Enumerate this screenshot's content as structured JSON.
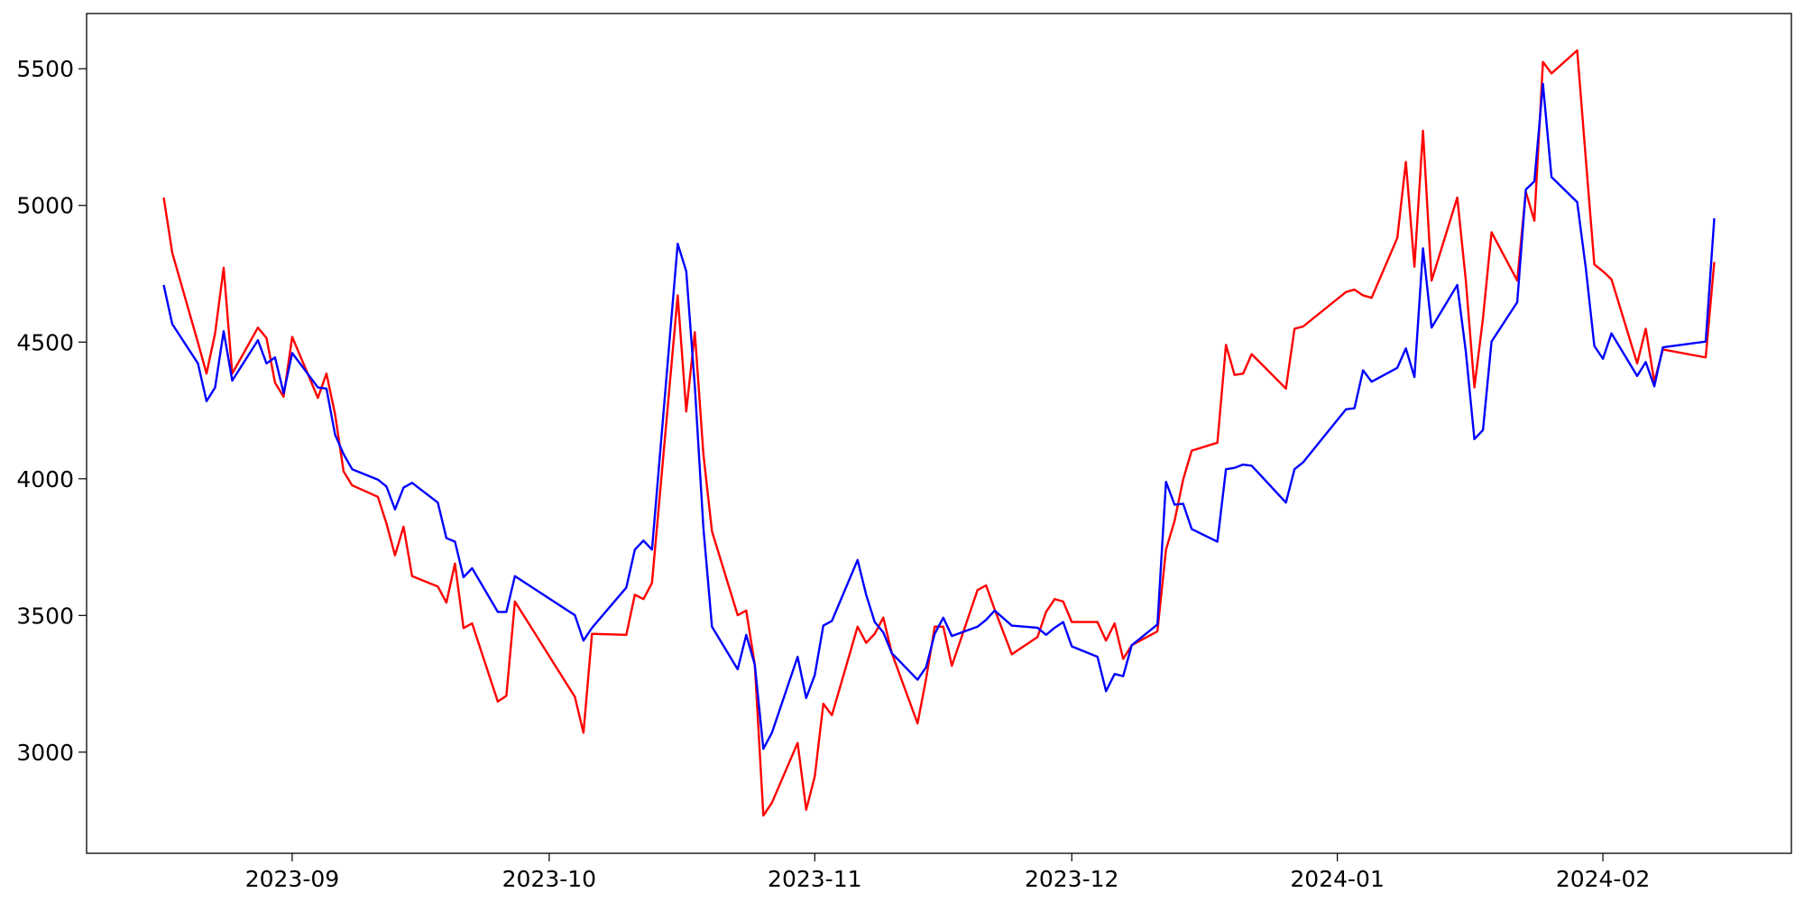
{
  "chart_data": {
    "type": "line",
    "x": [
      "2023-08-17",
      "2023-08-18",
      "2023-08-21",
      "2023-08-22",
      "2023-08-23",
      "2023-08-24",
      "2023-08-25",
      "2023-08-28",
      "2023-08-29",
      "2023-08-30",
      "2023-08-31",
      "2023-09-01",
      "2023-09-04",
      "2023-09-05",
      "2023-09-06",
      "2023-09-07",
      "2023-09-08",
      "2023-09-11",
      "2023-09-12",
      "2023-09-13",
      "2023-09-14",
      "2023-09-15",
      "2023-09-18",
      "2023-09-19",
      "2023-09-20",
      "2023-09-21",
      "2023-09-22",
      "2023-09-25",
      "2023-09-26",
      "2023-09-27",
      "2023-10-04",
      "2023-10-05",
      "2023-10-06",
      "2023-10-10",
      "2023-10-11",
      "2023-10-12",
      "2023-10-13",
      "2023-10-16",
      "2023-10-17",
      "2023-10-18",
      "2023-10-19",
      "2023-10-20",
      "2023-10-23",
      "2023-10-24",
      "2023-10-25",
      "2023-10-26",
      "2023-10-27",
      "2023-10-30",
      "2023-10-31",
      "2023-11-01",
      "2023-11-02",
      "2023-11-03",
      "2023-11-06",
      "2023-11-07",
      "2023-11-08",
      "2023-11-09",
      "2023-11-10",
      "2023-11-13",
      "2023-11-14",
      "2023-11-15",
      "2023-11-16",
      "2023-11-17",
      "2023-11-20",
      "2023-11-21",
      "2023-11-22",
      "2023-11-24",
      "2023-11-27",
      "2023-11-28",
      "2023-11-29",
      "2023-11-30",
      "2023-12-01",
      "2023-12-04",
      "2023-12-05",
      "2023-12-06",
      "2023-12-07",
      "2023-12-08",
      "2023-12-11",
      "2023-12-12",
      "2023-12-13",
      "2023-12-14",
      "2023-12-15",
      "2023-12-18",
      "2023-12-19",
      "2023-12-20",
      "2023-12-21",
      "2023-12-22",
      "2023-12-26",
      "2023-12-27",
      "2023-12-28",
      "2024-01-02",
      "2024-01-03",
      "2024-01-04",
      "2024-01-05",
      "2024-01-08",
      "2024-01-09",
      "2024-01-10",
      "2024-01-11",
      "2024-01-12",
      "2024-01-15",
      "2024-01-16",
      "2024-01-17",
      "2024-01-18",
      "2024-01-19",
      "2024-01-22",
      "2024-01-23",
      "2024-01-24",
      "2024-01-25",
      "2024-01-26",
      "2024-01-29",
      "2024-01-30",
      "2024-01-31",
      "2024-02-01",
      "2024-02-02",
      "2024-02-05",
      "2024-02-06",
      "2024-02-07",
      "2024-02-08",
      "2024-02-13",
      "2024-02-14"
    ],
    "series": [
      {
        "color": "#ff0000",
        "values": [
          5029,
          4827,
          4498,
          4385,
          4532,
          4772,
          4385,
          4553,
          4515,
          4351,
          4300,
          4519,
          4296,
          4385,
          4237,
          4027,
          3976,
          3934,
          3837,
          3720,
          3825,
          3644,
          3606,
          3547,
          3690,
          3454,
          3471,
          3185,
          3206,
          3551,
          3202,
          3071,
          3433,
          3429,
          3576,
          3560,
          3619,
          4671,
          4246,
          4536,
          4090,
          3808,
          3501,
          3518,
          3320,
          2768,
          2815,
          3034,
          2789,
          2911,
          3177,
          3135,
          3459,
          3400,
          3433,
          3492,
          3362,
          3105,
          3269,
          3459,
          3459,
          3316,
          3593,
          3610,
          3522,
          3358,
          3421,
          3513,
          3560,
          3551,
          3476,
          3476,
          3408,
          3471,
          3341,
          3391,
          3442,
          3741,
          3846,
          3997,
          4103,
          4132,
          4490,
          4380,
          4385,
          4456,
          4330,
          4549,
          4557,
          4683,
          4692,
          4671,
          4662,
          4881,
          5159,
          4776,
          5273,
          4725,
          5029,
          4725,
          4334,
          4587,
          4902,
          4725,
          5050,
          4944,
          5525,
          5483,
          5567,
          5172,
          4784,
          4759,
          4730,
          4422,
          4549,
          4355,
          4473,
          4444,
          4793
        ]
      },
      {
        "color": "#0000ff",
        "values": [
          4709,
          4566,
          4422,
          4284,
          4334,
          4540,
          4359,
          4507,
          4422,
          4444,
          4313,
          4460,
          4334,
          4330,
          4162,
          4090,
          4035,
          3997,
          3972,
          3888,
          3968,
          3985,
          3913,
          3783,
          3770,
          3640,
          3673,
          3513,
          3513,
          3644,
          3501,
          3408,
          3455,
          3602,
          3741,
          3774,
          3741,
          4860,
          4759,
          4338,
          3821,
          3459,
          3303,
          3429,
          3320,
          3012,
          3071,
          3349,
          3198,
          3282,
          3463,
          3480,
          3703,
          3576,
          3476,
          3438,
          3362,
          3265,
          3311,
          3433,
          3492,
          3425,
          3459,
          3484,
          3518,
          3463,
          3455,
          3429,
          3455,
          3476,
          3387,
          3349,
          3223,
          3286,
          3278,
          3391,
          3467,
          3989,
          3905,
          3909,
          3816,
          3770,
          4035,
          4040,
          4052,
          4048,
          3913,
          4035,
          4060,
          4254,
          4258,
          4397,
          4355,
          4406,
          4477,
          4372,
          4843,
          4553,
          4709,
          4465,
          4145,
          4178,
          4502,
          4646,
          5058,
          5088,
          5445,
          5104,
          5012,
          4772,
          4486,
          4439,
          4532,
          4376,
          4427,
          4338,
          4481,
          4502,
          4953
        ]
      }
    ],
    "xlim": [
      "2023-08-08",
      "2024-02-23"
    ],
    "xticks": [
      {
        "value": "2023-09-01",
        "label": "2023-09"
      },
      {
        "value": "2023-10-01",
        "label": "2023-10"
      },
      {
        "value": "2023-11-01",
        "label": "2023-11"
      },
      {
        "value": "2023-12-01",
        "label": "2023-12"
      },
      {
        "value": "2024-01-01",
        "label": "2024-01"
      },
      {
        "value": "2024-02-01",
        "label": "2024-02"
      }
    ],
    "ylim": [
      2630,
      5702
    ],
    "yticks": [
      3000,
      3500,
      4000,
      4500,
      5000,
      5500
    ],
    "grid": false
  }
}
